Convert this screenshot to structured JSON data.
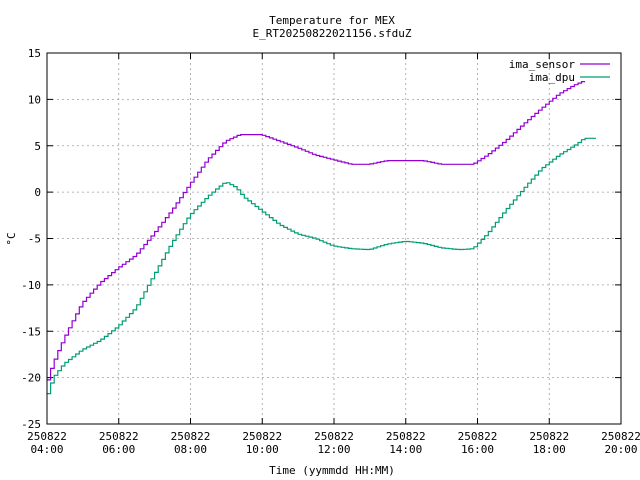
{
  "chart_data": {
    "type": "line",
    "title": "Temperature for MEX",
    "subtitle": "E_RT20250822021156.sfduZ",
    "xlabel": "Time (yymmdd HH:MM)",
    "ylabel": "°C",
    "ylim": [
      -25,
      15
    ],
    "yticks": [
      "-25",
      "-20",
      "-15",
      "-10",
      "-5",
      "0",
      "5",
      "10",
      "15"
    ],
    "xlim": [
      "2025-08-22 04:00",
      "2025-08-22 20:00"
    ],
    "xticks": [
      {
        "date": "250822",
        "time": "04:00",
        "hour": 4
      },
      {
        "date": "250822",
        "time": "06:00",
        "hour": 6
      },
      {
        "date": "250822",
        "time": "08:00",
        "hour": 8
      },
      {
        "date": "250822",
        "time": "10:00",
        "hour": 10
      },
      {
        "date": "250822",
        "time": "12:00",
        "hour": 12
      },
      {
        "date": "250822",
        "time": "14:00",
        "hour": 14
      },
      {
        "date": "250822",
        "time": "16:00",
        "hour": 16
      },
      {
        "date": "250822",
        "time": "18:00",
        "hour": 18
      },
      {
        "date": "250822",
        "time": "20:00",
        "hour": 20
      }
    ],
    "grid": true,
    "legend_position": "top-right",
    "series": [
      {
        "name": "ima_sensor",
        "color": "#9400d3",
        "points": [
          [
            4.0,
            -21.0
          ],
          [
            4.1,
            -19.5
          ],
          [
            4.3,
            -17.5
          ],
          [
            4.6,
            -15.0
          ],
          [
            5.0,
            -12.0
          ],
          [
            5.5,
            -9.8
          ],
          [
            6.0,
            -8.2
          ],
          [
            6.5,
            -6.8
          ],
          [
            7.0,
            -4.5
          ],
          [
            7.5,
            -2.0
          ],
          [
            8.0,
            0.8
          ],
          [
            8.5,
            3.5
          ],
          [
            9.0,
            5.5
          ],
          [
            9.4,
            6.2
          ],
          [
            10.0,
            6.2
          ],
          [
            10.5,
            5.5
          ],
          [
            11.0,
            4.8
          ],
          [
            11.5,
            4.0
          ],
          [
            12.0,
            3.5
          ],
          [
            12.5,
            3.0
          ],
          [
            13.0,
            3.0
          ],
          [
            13.5,
            3.4
          ],
          [
            14.0,
            3.4
          ],
          [
            14.5,
            3.4
          ],
          [
            15.0,
            3.0
          ],
          [
            15.5,
            3.0
          ],
          [
            15.9,
            3.0
          ],
          [
            16.3,
            4.0
          ],
          [
            16.8,
            5.5
          ],
          [
            17.3,
            7.3
          ],
          [
            17.8,
            9.0
          ],
          [
            18.3,
            10.6
          ],
          [
            18.7,
            11.5
          ],
          [
            19.0,
            12.0
          ]
        ]
      },
      {
        "name": "ima_dpu",
        "color": "#009e73",
        "points": [
          [
            4.0,
            -22.3
          ],
          [
            4.2,
            -20.0
          ],
          [
            4.5,
            -18.5
          ],
          [
            5.0,
            -17.0
          ],
          [
            5.5,
            -16.0
          ],
          [
            6.0,
            -14.5
          ],
          [
            6.5,
            -12.5
          ],
          [
            7.0,
            -9.0
          ],
          [
            7.5,
            -5.5
          ],
          [
            8.0,
            -2.5
          ],
          [
            8.5,
            -0.5
          ],
          [
            8.8,
            0.5
          ],
          [
            9.0,
            1.1
          ],
          [
            9.3,
            0.5
          ],
          [
            9.5,
            -0.5
          ],
          [
            10.0,
            -2.0
          ],
          [
            10.5,
            -3.5
          ],
          [
            11.0,
            -4.5
          ],
          [
            11.5,
            -5.0
          ],
          [
            12.0,
            -5.8
          ],
          [
            12.5,
            -6.1
          ],
          [
            13.0,
            -6.2
          ],
          [
            13.5,
            -5.6
          ],
          [
            14.0,
            -5.3
          ],
          [
            14.5,
            -5.5
          ],
          [
            15.0,
            -6.0
          ],
          [
            15.5,
            -6.2
          ],
          [
            15.9,
            -6.1
          ],
          [
            16.3,
            -4.5
          ],
          [
            16.8,
            -2.0
          ],
          [
            17.3,
            0.3
          ],
          [
            17.8,
            2.5
          ],
          [
            18.3,
            4.0
          ],
          [
            18.8,
            5.2
          ],
          [
            19.0,
            5.8
          ],
          [
            19.3,
            5.8
          ]
        ]
      }
    ]
  }
}
